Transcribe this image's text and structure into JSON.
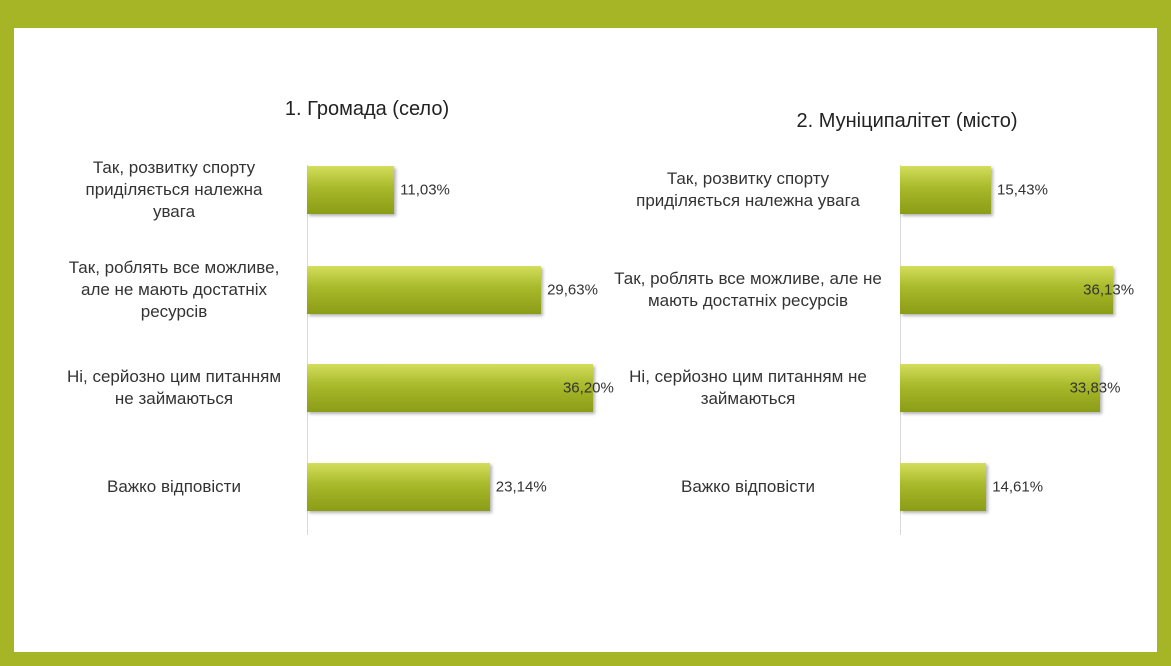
{
  "chart_data": [
    {
      "type": "bar",
      "orientation": "horizontal",
      "title": "1. Громада (село)",
      "categories": [
        "Так, розвитку спорту приділяється належна увага",
        "Так, роблять все можливе, але не мають достатніх ресурсів",
        "Ні, серйозно цим питанням не займаються",
        "Важко відповісти"
      ],
      "values": [
        11.03,
        29.63,
        36.2,
        23.14
      ],
      "value_labels": [
        "11,03%",
        "29,63%",
        "36,20%",
        "23,14%"
      ],
      "color": "#a8b92a",
      "xlim": [
        0,
        40
      ]
    },
    {
      "type": "bar",
      "orientation": "horizontal",
      "title": "2. Муніципалітет (місто)",
      "categories": [
        "Так, розвитку спорту приділяється належна увага",
        "Так, роблять все можливе, але не мають достатніх ресурсів",
        "Ні, серйозно цим питанням не займаються",
        "Важко відповісти"
      ],
      "values": [
        15.43,
        36.13,
        33.83,
        14.61
      ],
      "value_labels": [
        "15,43%",
        "36,13%",
        "33,83%",
        "14,61%"
      ],
      "color": "#a8b92a",
      "xlim": [
        0,
        40
      ]
    }
  ]
}
